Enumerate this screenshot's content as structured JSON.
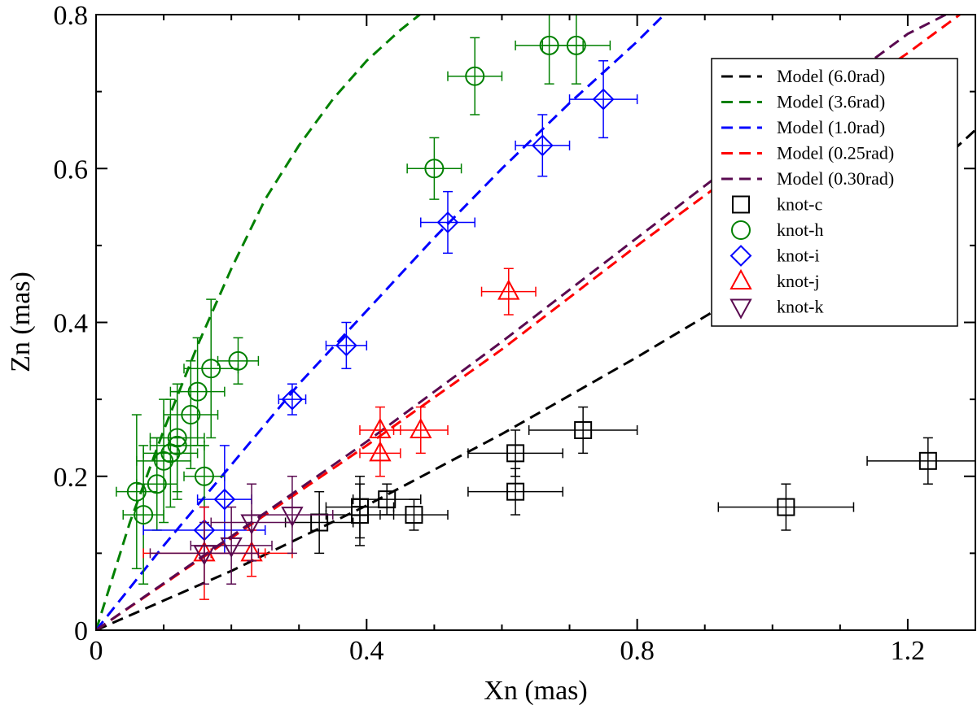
{
  "chart_data": {
    "type": "scatter",
    "title": "",
    "xlabel": "Xn (mas)",
    "ylabel": "Zn (mas)",
    "xlim": [
      0,
      1.3
    ],
    "ylim": [
      0,
      0.8
    ],
    "xticks": [
      0,
      0.4,
      0.8,
      1.2
    ],
    "xtick_labels": [
      "0",
      "0.4",
      "0.8",
      "1.2"
    ],
    "yticks": [
      0,
      0.2,
      0.4,
      0.6,
      0.8
    ],
    "ytick_labels": [
      "0",
      "0.2",
      "0.4",
      "0.6",
      "0.8"
    ],
    "grid": false,
    "legend_position": "top-right",
    "models": [
      {
        "name": "Model (6.0rad)",
        "color": "#000000",
        "points": [
          [
            0,
            0
          ],
          [
            0.2,
            0.077
          ],
          [
            0.4,
            0.162
          ],
          [
            0.6,
            0.255
          ],
          [
            0.8,
            0.355
          ],
          [
            1.0,
            0.46
          ],
          [
            1.2,
            0.57
          ],
          [
            1.3,
            0.65
          ]
        ]
      },
      {
        "name": "Model (3.6rad)",
        "color": "#008000",
        "points": [
          [
            0,
            0
          ],
          [
            0.05,
            0.14
          ],
          [
            0.1,
            0.26
          ],
          [
            0.15,
            0.37
          ],
          [
            0.2,
            0.47
          ],
          [
            0.25,
            0.56
          ],
          [
            0.3,
            0.63
          ],
          [
            0.35,
            0.69
          ],
          [
            0.4,
            0.74
          ],
          [
            0.45,
            0.78
          ],
          [
            0.5,
            0.815
          ]
        ]
      },
      {
        "name": "Model (1.0rad)",
        "color": "#0000ff",
        "points": [
          [
            0,
            0
          ],
          [
            0.1,
            0.11
          ],
          [
            0.2,
            0.215
          ],
          [
            0.3,
            0.32
          ],
          [
            0.4,
            0.415
          ],
          [
            0.5,
            0.51
          ],
          [
            0.6,
            0.6
          ],
          [
            0.7,
            0.685
          ],
          [
            0.75,
            0.725
          ],
          [
            0.8,
            0.765
          ],
          [
            0.84,
            0.8
          ]
        ]
      },
      {
        "name": "Model (0.25rad)",
        "color": "#ff0000",
        "points": [
          [
            0,
            0
          ],
          [
            0.2,
            0.12
          ],
          [
            0.4,
            0.24
          ],
          [
            0.6,
            0.365
          ],
          [
            0.8,
            0.5
          ],
          [
            1.0,
            0.63
          ],
          [
            1.2,
            0.75
          ],
          [
            1.3,
            0.815
          ]
        ]
      },
      {
        "name": "Model (0.30rad)",
        "color": "#5a0a50",
        "points": [
          [
            0,
            0
          ],
          [
            0.2,
            0.122
          ],
          [
            0.4,
            0.245
          ],
          [
            0.6,
            0.375
          ],
          [
            0.8,
            0.51
          ],
          [
            1.0,
            0.645
          ],
          [
            1.2,
            0.775
          ],
          [
            1.29,
            0.815
          ]
        ]
      }
    ],
    "series": [
      {
        "name": "knot-c",
        "marker": "square",
        "color": "#000000",
        "points": [
          {
            "x": 0.33,
            "y": 0.14,
            "xerr": 0.05,
            "yerr": 0.04
          },
          {
            "x": 0.39,
            "y": 0.16,
            "xerr": 0.05,
            "yerr": 0.04
          },
          {
            "x": 0.39,
            "y": 0.15,
            "xerr": 0.05,
            "yerr": 0.04
          },
          {
            "x": 0.43,
            "y": 0.17,
            "xerr": 0.05,
            "yerr": 0.02
          },
          {
            "x": 0.47,
            "y": 0.15,
            "xerr": 0.05,
            "yerr": 0.02
          },
          {
            "x": 0.62,
            "y": 0.23,
            "xerr": 0.07,
            "yerr": 0.03
          },
          {
            "x": 0.62,
            "y": 0.18,
            "xerr": 0.07,
            "yerr": 0.03
          },
          {
            "x": 0.72,
            "y": 0.26,
            "xerr": 0.08,
            "yerr": 0.03
          },
          {
            "x": 1.02,
            "y": 0.16,
            "xerr": 0.1,
            "yerr": 0.03
          },
          {
            "x": 1.23,
            "y": 0.22,
            "xerr": 0.09,
            "yerr": 0.03
          }
        ]
      },
      {
        "name": "knot-h",
        "marker": "circle",
        "color": "#008000",
        "points": [
          {
            "x": 0.06,
            "y": 0.18,
            "xerr": 0.03,
            "yerr": 0.1
          },
          {
            "x": 0.07,
            "y": 0.15,
            "xerr": 0.03,
            "yerr": 0.09
          },
          {
            "x": 0.09,
            "y": 0.19,
            "xerr": 0.03,
            "yerr": 0.06
          },
          {
            "x": 0.1,
            "y": 0.22,
            "xerr": 0.04,
            "yerr": 0.08
          },
          {
            "x": 0.11,
            "y": 0.23,
            "xerr": 0.04,
            "yerr": 0.07
          },
          {
            "x": 0.12,
            "y": 0.24,
            "xerr": 0.04,
            "yerr": 0.07
          },
          {
            "x": 0.12,
            "y": 0.25,
            "xerr": 0.04,
            "yerr": 0.07
          },
          {
            "x": 0.14,
            "y": 0.28,
            "xerr": 0.04,
            "yerr": 0.07
          },
          {
            "x": 0.15,
            "y": 0.31,
            "xerr": 0.04,
            "yerr": 0.07
          },
          {
            "x": 0.17,
            "y": 0.34,
            "xerr": 0.04,
            "yerr": 0.09
          },
          {
            "x": 0.16,
            "y": 0.2,
            "xerr": 0.03,
            "yerr": 0.04
          },
          {
            "x": 0.21,
            "y": 0.35,
            "xerr": 0.03,
            "yerr": 0.03
          },
          {
            "x": 0.5,
            "y": 0.6,
            "xerr": 0.04,
            "yerr": 0.04
          },
          {
            "x": 0.56,
            "y": 0.72,
            "xerr": 0.04,
            "yerr": 0.05
          },
          {
            "x": 0.67,
            "y": 0.76,
            "xerr": 0.05,
            "yerr": 0.05
          },
          {
            "x": 0.71,
            "y": 0.76,
            "xerr": 0.05,
            "yerr": 0.05
          }
        ]
      },
      {
        "name": "knot-i",
        "marker": "diamond",
        "color": "#0000ff",
        "points": [
          {
            "x": 0.16,
            "y": 0.13,
            "xerr": 0.09,
            "yerr": 0.03
          },
          {
            "x": 0.19,
            "y": 0.17,
            "xerr": 0.04,
            "yerr": 0.07
          },
          {
            "x": 0.29,
            "y": 0.3,
            "xerr": 0.02,
            "yerr": 0.02
          },
          {
            "x": 0.37,
            "y": 0.37,
            "xerr": 0.03,
            "yerr": 0.03
          },
          {
            "x": 0.52,
            "y": 0.53,
            "xerr": 0.04,
            "yerr": 0.04
          },
          {
            "x": 0.66,
            "y": 0.63,
            "xerr": 0.04,
            "yerr": 0.04
          },
          {
            "x": 0.75,
            "y": 0.69,
            "xerr": 0.05,
            "yerr": 0.05
          }
        ]
      },
      {
        "name": "knot-j",
        "marker": "triangle-up",
        "color": "#ff0000",
        "points": [
          {
            "x": 0.16,
            "y": 0.1,
            "xerr": 0.09,
            "yerr": 0.06
          },
          {
            "x": 0.23,
            "y": 0.1,
            "xerr": 0.06,
            "yerr": 0.03
          },
          {
            "x": 0.42,
            "y": 0.26,
            "xerr": 0.03,
            "yerr": 0.03
          },
          {
            "x": 0.42,
            "y": 0.23,
            "xerr": 0.03,
            "yerr": 0.03
          },
          {
            "x": 0.48,
            "y": 0.26,
            "xerr": 0.04,
            "yerr": 0.03
          },
          {
            "x": 0.61,
            "y": 0.44,
            "xerr": 0.04,
            "yerr": 0.03
          }
        ]
      },
      {
        "name": "knot-k",
        "marker": "triangle-down",
        "color": "#5a0a50",
        "points": [
          {
            "x": 0.16,
            "y": 0.1,
            "xerr": 0.08,
            "yerr": 0.04
          },
          {
            "x": 0.2,
            "y": 0.11,
            "xerr": 0.06,
            "yerr": 0.05
          },
          {
            "x": 0.23,
            "y": 0.14,
            "xerr": 0.06,
            "yerr": 0.05
          },
          {
            "x": 0.29,
            "y": 0.15,
            "xerr": 0.06,
            "yerr": 0.05
          }
        ]
      }
    ]
  }
}
